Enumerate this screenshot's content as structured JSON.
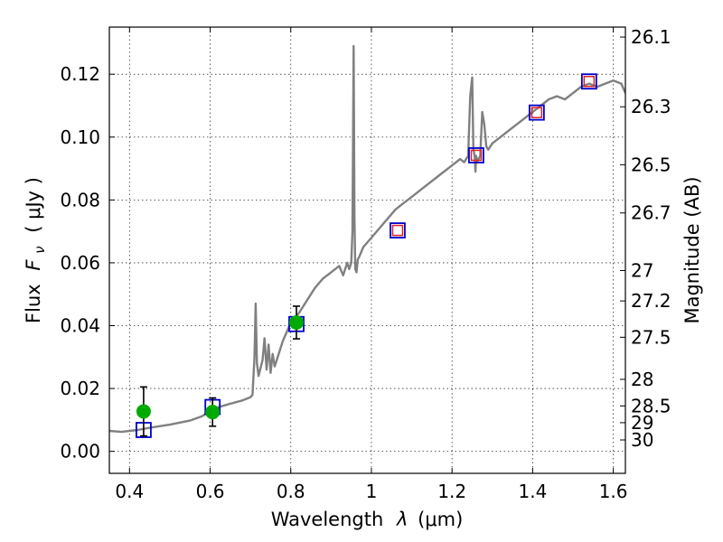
{
  "chart_data": {
    "type": "scatter",
    "xlabel": {
      "prefix": "Wavelength",
      "symbol": "λ",
      "unit": "(μm)"
    },
    "ylabel": {
      "prefix": "Flux",
      "symbol": "F",
      "subscript": "ν",
      "unit": "( μJy )"
    },
    "y2label": "Magnitude (AB)",
    "xlim": [
      0.35,
      1.63
    ],
    "ylim": [
      -0.007,
      0.135
    ],
    "grid": true,
    "x_ticks": [
      {
        "value": 0.4,
        "label": "0.4"
      },
      {
        "value": 0.6,
        "label": "0.6"
      },
      {
        "value": 0.8,
        "label": "0.8"
      },
      {
        "value": 1.0,
        "label": "1"
      },
      {
        "value": 1.2,
        "label": "1.2"
      },
      {
        "value": 1.4,
        "label": "1.4"
      },
      {
        "value": 1.6,
        "label": "1.6"
      }
    ],
    "y_ticks": [
      {
        "value": 0.0,
        "label": "0.00"
      },
      {
        "value": 0.02,
        "label": "0.02"
      },
      {
        "value": 0.04,
        "label": "0.04"
      },
      {
        "value": 0.06,
        "label": "0.06"
      },
      {
        "value": 0.08,
        "label": "0.08"
      },
      {
        "value": 0.1,
        "label": "0.10"
      },
      {
        "value": 0.12,
        "label": "0.12"
      }
    ],
    "y2_ticks": [
      {
        "value": 26.1,
        "label": "26.1"
      },
      {
        "value": 26.3,
        "label": "26.3"
      },
      {
        "value": 26.5,
        "label": "26.5"
      },
      {
        "value": 26.7,
        "label": "26.7"
      },
      {
        "value": 27.0,
        "label": "27"
      },
      {
        "value": 27.2,
        "label": "27.2"
      },
      {
        "value": 27.5,
        "label": "27.5"
      },
      {
        "value": 28.0,
        "label": "28"
      },
      {
        "value": 28.5,
        "label": "28.5"
      },
      {
        "value": 29.0,
        "label": "29"
      },
      {
        "value": 30.0,
        "label": "30"
      }
    ],
    "model_spectrum": {
      "color": "#808080",
      "x": [
        0.35,
        0.38,
        0.42,
        0.45,
        0.5,
        0.55,
        0.58,
        0.6,
        0.62,
        0.64,
        0.66,
        0.68,
        0.7,
        0.705,
        0.71,
        0.713,
        0.716,
        0.72,
        0.73,
        0.735,
        0.74,
        0.745,
        0.75,
        0.755,
        0.76,
        0.77,
        0.78,
        0.79,
        0.8,
        0.82,
        0.84,
        0.86,
        0.88,
        0.9,
        0.92,
        0.93,
        0.94,
        0.945,
        0.95,
        0.953,
        0.956,
        0.958,
        0.96,
        0.963,
        0.966,
        0.97,
        0.98,
        1.0,
        1.02,
        1.04,
        1.06,
        1.08,
        1.1,
        1.12,
        1.14,
        1.16,
        1.18,
        1.2,
        1.22,
        1.23,
        1.24,
        1.245,
        1.25,
        1.253,
        1.256,
        1.258,
        1.26,
        1.263,
        1.266,
        1.27,
        1.275,
        1.28,
        1.285,
        1.29,
        1.3,
        1.32,
        1.34,
        1.36,
        1.38,
        1.4,
        1.42,
        1.44,
        1.46,
        1.48,
        1.5,
        1.52,
        1.54,
        1.56,
        1.58,
        1.6,
        1.62,
        1.63
      ],
      "y": [
        0.0065,
        0.0062,
        0.0068,
        0.0075,
        0.0085,
        0.0098,
        0.0112,
        0.0128,
        0.014,
        0.0148,
        0.0155,
        0.0162,
        0.0172,
        0.018,
        0.03,
        0.047,
        0.028,
        0.024,
        0.029,
        0.036,
        0.026,
        0.034,
        0.025,
        0.031,
        0.027,
        0.031,
        0.035,
        0.038,
        0.041,
        0.044,
        0.048,
        0.052,
        0.055,
        0.057,
        0.059,
        0.056,
        0.06,
        0.058,
        0.06,
        0.07,
        0.129,
        0.075,
        0.058,
        0.057,
        0.061,
        0.062,
        0.065,
        0.068,
        0.071,
        0.074,
        0.077,
        0.079,
        0.081,
        0.083,
        0.085,
        0.087,
        0.089,
        0.091,
        0.093,
        0.092,
        0.094,
        0.113,
        0.119,
        0.096,
        0.094,
        0.089,
        0.094,
        0.092,
        0.093,
        0.094,
        0.108,
        0.104,
        0.097,
        0.096,
        0.098,
        0.1,
        0.102,
        0.104,
        0.106,
        0.108,
        0.11,
        0.112,
        0.113,
        0.112,
        0.114,
        0.116,
        0.117,
        0.116,
        0.117,
        0.118,
        0.117,
        0.114
      ]
    },
    "model_photometry": {
      "color": "#0000cc",
      "marker": "open-square",
      "x": [
        0.435,
        0.606,
        0.814,
        1.065,
        1.26,
        1.41,
        1.54
      ],
      "y": [
        0.0068,
        0.0141,
        0.0405,
        0.0703,
        0.0942,
        0.1078,
        0.1177
      ]
    },
    "model_photometry_inner": {
      "color": "#dd2222",
      "marker": "open-square",
      "x": [
        1.065,
        1.26,
        1.41,
        1.54
      ],
      "y": [
        0.0703,
        0.0942,
        0.1078,
        0.1177
      ]
    },
    "observed": {
      "color": "#00aa00",
      "marker": "filled-circle",
      "points": [
        {
          "x": 0.435,
          "y": 0.0127,
          "yerr": 0.0078
        },
        {
          "x": 0.606,
          "y": 0.0125,
          "yerr": 0.0045
        },
        {
          "x": 0.814,
          "y": 0.041,
          "yerr": 0.0052
        }
      ]
    }
  }
}
